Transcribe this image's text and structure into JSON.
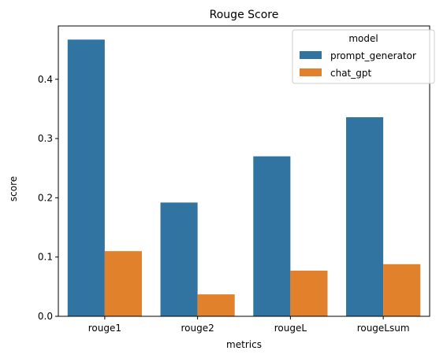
{
  "chart_data": {
    "type": "bar",
    "title": "Rouge Score",
    "xlabel": "metrics",
    "ylabel": "score",
    "categories": [
      "rouge1",
      "rouge2",
      "rougeL",
      "rougeLsum"
    ],
    "series": [
      {
        "name": "prompt_generator",
        "color": "#3274a1",
        "values": [
          0.467,
          0.192,
          0.27,
          0.336
        ]
      },
      {
        "name": "chat_gpt",
        "color": "#e1812c",
        "values": [
          0.11,
          0.037,
          0.077,
          0.088
        ]
      }
    ],
    "ylim": [
      0,
      0.49
    ],
    "yticks": [
      "0.0",
      "0.1",
      "0.2",
      "0.3",
      "0.4"
    ],
    "legend": {
      "title": "model",
      "placement": "top-right"
    },
    "grid": false
  }
}
